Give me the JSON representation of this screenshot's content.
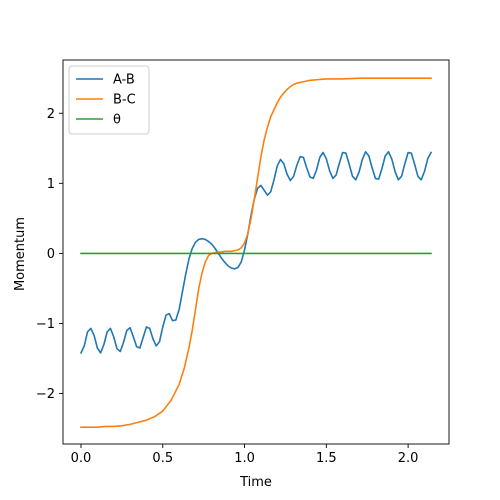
{
  "chart_data": {
    "type": "line",
    "title": "",
    "xlabel": "Time",
    "ylabel": "Momentum",
    "xlim": [
      -0.11,
      2.25
    ],
    "ylim": [
      -2.72,
      2.76
    ],
    "xticks": [
      0.0,
      0.5,
      1.0,
      1.5,
      2.0
    ],
    "xtick_labels": [
      "0.0",
      "0.5",
      "1.0",
      "1.5",
      "2.0"
    ],
    "yticks": [
      -2,
      -1,
      0,
      1,
      2
    ],
    "ytick_labels": [
      "−2",
      "−1",
      "0",
      "1",
      "2"
    ],
    "grid": false,
    "legend_position": "upper-left",
    "series": [
      {
        "name": "A-B",
        "color": "#1f77b4",
        "x": [
          0.0,
          0.02,
          0.04,
          0.06,
          0.08,
          0.1,
          0.12,
          0.14,
          0.16,
          0.18,
          0.2,
          0.22,
          0.24,
          0.26,
          0.28,
          0.3,
          0.32,
          0.34,
          0.36,
          0.38,
          0.4,
          0.42,
          0.44,
          0.46,
          0.48,
          0.5,
          0.52,
          0.54,
          0.56,
          0.58,
          0.6,
          0.62,
          0.64,
          0.66,
          0.68,
          0.7,
          0.72,
          0.74,
          0.76,
          0.78,
          0.8,
          0.82,
          0.84,
          0.86,
          0.88,
          0.9,
          0.92,
          0.94,
          0.96,
          0.98,
          1.0,
          1.02,
          1.04,
          1.06,
          1.08,
          1.1,
          1.12,
          1.14,
          1.16,
          1.18,
          1.2,
          1.22,
          1.24,
          1.26,
          1.28,
          1.3,
          1.32,
          1.34,
          1.36,
          1.38,
          1.4,
          1.42,
          1.44,
          1.46,
          1.48,
          1.5,
          1.52,
          1.54,
          1.56,
          1.58,
          1.6,
          1.62,
          1.64,
          1.66,
          1.68,
          1.7,
          1.72,
          1.74,
          1.76,
          1.78,
          1.8,
          1.82,
          1.84,
          1.86,
          1.88,
          1.9,
          1.92,
          1.94,
          1.96,
          1.98,
          2.0,
          2.02,
          2.04,
          2.06,
          2.08,
          2.1,
          2.12,
          2.14
        ],
        "y": [
          -1.42,
          -1.32,
          -1.12,
          -1.07,
          -1.17,
          -1.35,
          -1.42,
          -1.3,
          -1.12,
          -1.07,
          -1.19,
          -1.36,
          -1.4,
          -1.27,
          -1.1,
          -1.06,
          -1.19,
          -1.33,
          -1.35,
          -1.2,
          -1.05,
          -1.07,
          -1.22,
          -1.32,
          -1.26,
          -1.05,
          -0.88,
          -0.86,
          -0.96,
          -0.95,
          -0.8,
          -0.55,
          -0.3,
          -0.08,
          0.07,
          0.16,
          0.2,
          0.21,
          0.2,
          0.17,
          0.13,
          0.07,
          0.0,
          -0.07,
          -0.13,
          -0.18,
          -0.21,
          -0.22,
          -0.2,
          -0.12,
          0.05,
          0.28,
          0.55,
          0.78,
          0.93,
          0.97,
          0.9,
          0.83,
          0.88,
          1.05,
          1.25,
          1.34,
          1.28,
          1.13,
          1.04,
          1.1,
          1.26,
          1.38,
          1.37,
          1.22,
          1.09,
          1.07,
          1.19,
          1.37,
          1.44,
          1.35,
          1.18,
          1.07,
          1.12,
          1.29,
          1.44,
          1.43,
          1.27,
          1.1,
          1.05,
          1.16,
          1.34,
          1.45,
          1.39,
          1.22,
          1.07,
          1.06,
          1.21,
          1.39,
          1.45,
          1.35,
          1.17,
          1.05,
          1.1,
          1.28,
          1.44,
          1.43,
          1.27,
          1.1,
          1.05,
          1.17,
          1.35,
          1.44
        ]
      },
      {
        "name": "B-C",
        "color": "#ff7f0e",
        "x": [
          0.0,
          0.05,
          0.1,
          0.15,
          0.2,
          0.25,
          0.3,
          0.35,
          0.4,
          0.45,
          0.5,
          0.55,
          0.6,
          0.63,
          0.66,
          0.68,
          0.7,
          0.72,
          0.74,
          0.76,
          0.78,
          0.8,
          0.82,
          0.84,
          0.86,
          0.88,
          0.9,
          0.92,
          0.94,
          0.96,
          0.98,
          1.0,
          1.02,
          1.04,
          1.06,
          1.08,
          1.1,
          1.12,
          1.14,
          1.16,
          1.18,
          1.2,
          1.22,
          1.24,
          1.26,
          1.28,
          1.3,
          1.32,
          1.34,
          1.36,
          1.38,
          1.4,
          1.45,
          1.5,
          1.55,
          1.6,
          1.7,
          1.8,
          1.9,
          2.0,
          2.1,
          2.14
        ],
        "y": [
          -2.48,
          -2.48,
          -2.48,
          -2.47,
          -2.47,
          -2.46,
          -2.44,
          -2.41,
          -2.38,
          -2.33,
          -2.25,
          -2.1,
          -1.87,
          -1.65,
          -1.35,
          -1.1,
          -0.8,
          -0.5,
          -0.28,
          -0.12,
          -0.03,
          0.0,
          0.01,
          0.02,
          0.02,
          0.03,
          0.03,
          0.03,
          0.04,
          0.05,
          0.08,
          0.15,
          0.28,
          0.5,
          0.78,
          1.08,
          1.38,
          1.62,
          1.8,
          1.95,
          2.05,
          2.15,
          2.23,
          2.29,
          2.34,
          2.38,
          2.41,
          2.43,
          2.44,
          2.45,
          2.46,
          2.47,
          2.48,
          2.49,
          2.49,
          2.49,
          2.5,
          2.5,
          2.5,
          2.5,
          2.5,
          2.5
        ]
      },
      {
        "name": "θ",
        "color": "#2ca02c",
        "x": [
          0.0,
          2.14
        ],
        "y": [
          0.0,
          0.0
        ]
      }
    ]
  }
}
